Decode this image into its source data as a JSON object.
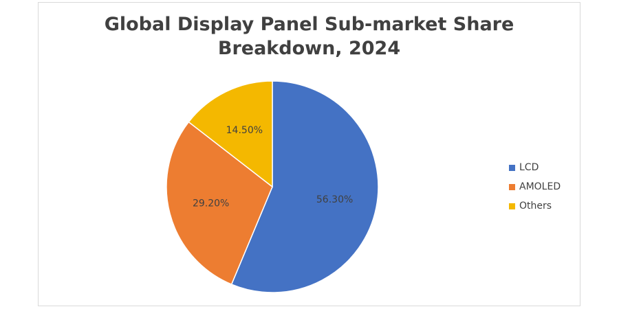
{
  "chart_data": {
    "type": "pie",
    "title": "Global Display Panel Sub-market Share Breakdown, 2024",
    "title_lines": [
      "Global Display Panel Sub-market Share",
      "Breakdown, 2024"
    ],
    "categories": [
      "LCD",
      "AMOLED",
      "Others"
    ],
    "values": [
      56.3,
      29.2,
      14.5
    ],
    "data_labels": [
      "56.30%",
      "29.20%",
      "14.50%"
    ],
    "colors": [
      "#4472c4",
      "#ed7d31",
      "#f4b800"
    ],
    "legend": {
      "position": "right",
      "entries": [
        "LCD",
        "AMOLED",
        "Others"
      ]
    }
  }
}
